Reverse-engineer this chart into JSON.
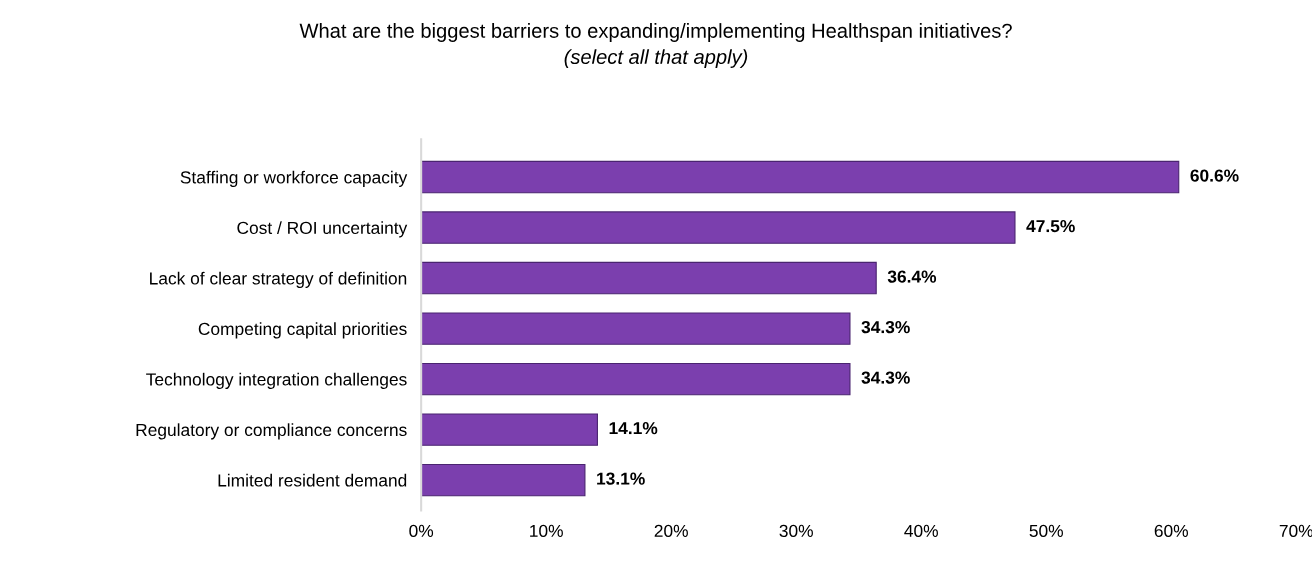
{
  "chart_data": {
    "type": "bar",
    "orientation": "horizontal",
    "title": "What are the biggest barriers to expanding/implementing Healthspan initiatives?",
    "subtitle": "(select all that apply)",
    "categories": [
      "Staffing or workforce capacity",
      "Cost / ROI uncertainty",
      "Lack of clear strategy of definition",
      "Competing capital priorities",
      "Technology integration challenges",
      "Regulatory or compliance concerns",
      "Limited resident demand"
    ],
    "values": [
      60.6,
      47.5,
      36.4,
      34.3,
      34.3,
      14.1,
      13.1
    ],
    "value_labels": [
      "60.6%",
      "47.5%",
      "36.4%",
      "34.3%",
      "34.3%",
      "14.1%",
      "13.1%"
    ],
    "color": "#7b3fae",
    "xlim": [
      0,
      70
    ],
    "xticks": [
      {
        "value": 0,
        "label": "0%"
      },
      {
        "value": 10,
        "label": "10%"
      },
      {
        "value": 20,
        "label": "20%"
      },
      {
        "value": 30,
        "label": "30%"
      },
      {
        "value": 40,
        "label": "40%"
      },
      {
        "value": 50,
        "label": "50%"
      },
      {
        "value": 60,
        "label": "60%"
      },
      {
        "value": 70,
        "label": "70%"
      }
    ],
    "grid": false,
    "legend": false
  }
}
